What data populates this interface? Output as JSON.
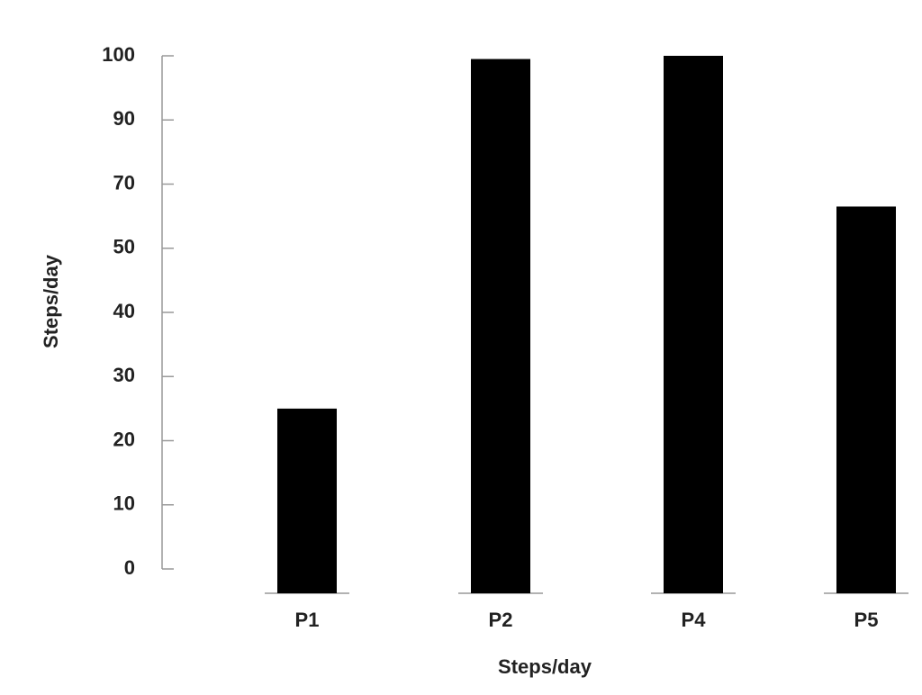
{
  "chart_data": {
    "type": "bar",
    "ylabel": "Steps/day",
    "xlabel": "Steps/day",
    "categories": [
      "P1",
      "P2",
      "P4",
      "P5"
    ],
    "values": [
      25,
      99.5,
      100,
      63
    ],
    "color": "#000000",
    "ylim": [
      0,
      100
    ],
    "yticks": [
      0,
      10,
      20,
      30,
      40,
      50,
      70,
      90,
      100
    ]
  }
}
